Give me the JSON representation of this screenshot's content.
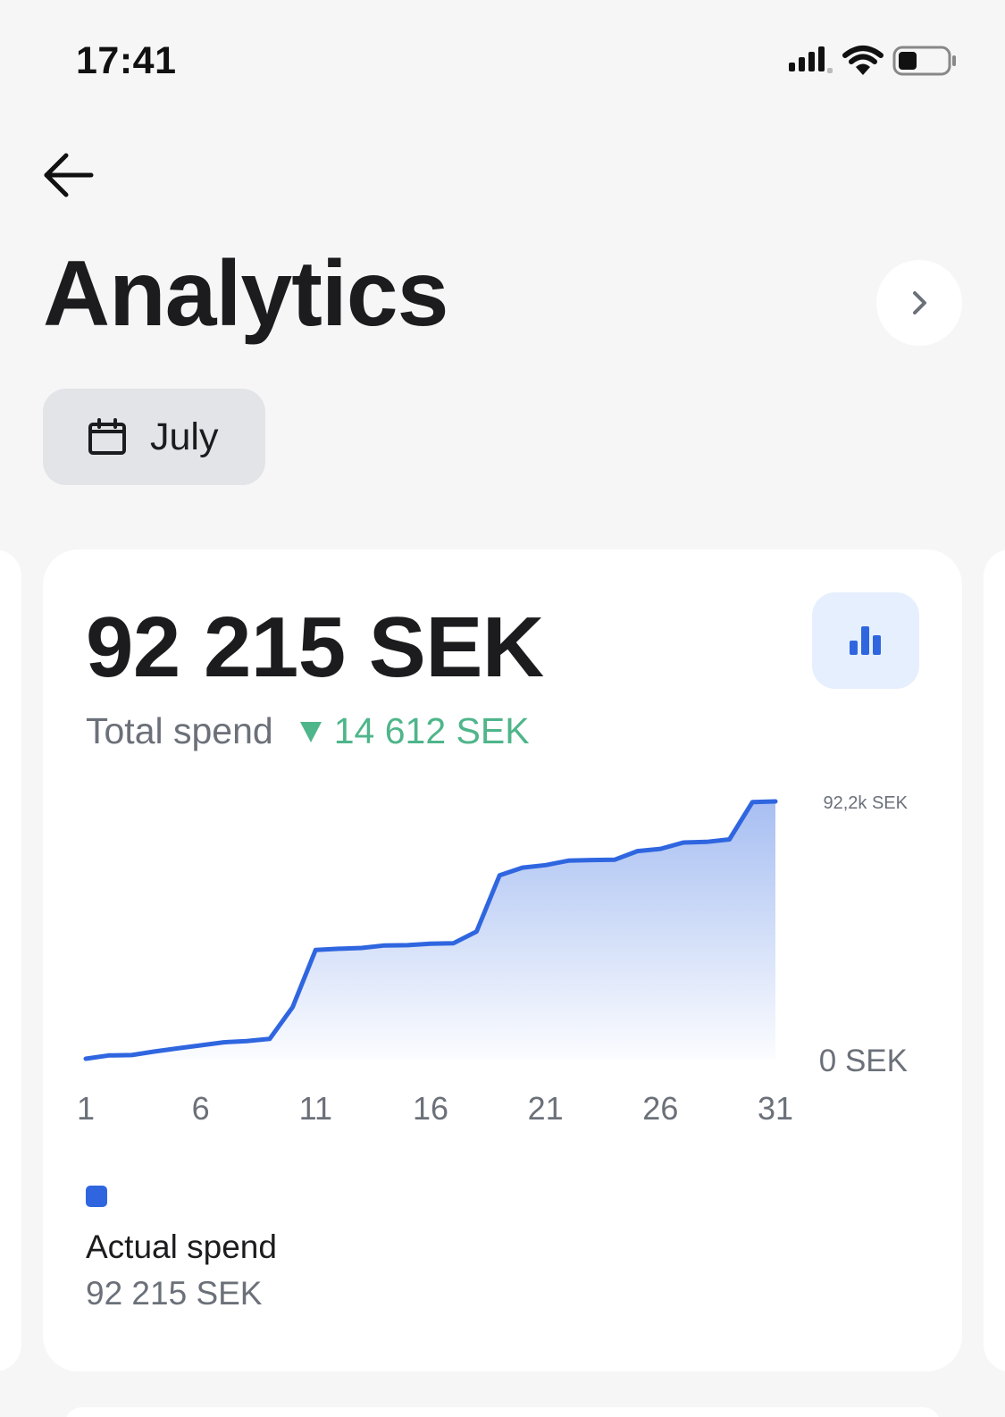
{
  "status_bar": {
    "time": "17:41",
    "icons": [
      "cellular-signal-icon",
      "wifi-icon",
      "battery-icon"
    ]
  },
  "header": {
    "back_icon": "arrow-left-icon",
    "title": "Analytics",
    "next_icon": "chevron-right-icon"
  },
  "filter": {
    "icon": "calendar-icon",
    "month": "July"
  },
  "summary": {
    "total": "92 215 SEK",
    "label": "Total spend",
    "delta_direction": "down",
    "delta": "14 612 SEK",
    "chart_icon": "bar-chart-icon"
  },
  "colors": {
    "accent": "#2f66e0",
    "positive": "#4fb58a",
    "muted": "#6b7079",
    "background": "#f6f6f6",
    "card": "#ffffff",
    "filter_bg": "#e2e4e8",
    "chart_button_bg": "#e6effd"
  },
  "legend": {
    "name": "Actual spend",
    "value": "92 215 SEK"
  },
  "chart_data": {
    "type": "area",
    "title": "",
    "xlabel": "",
    "ylabel": "",
    "x_ticks": [
      "1",
      "6",
      "11",
      "16",
      "21",
      "26",
      "31"
    ],
    "y_ticks": [
      {
        "value": 0,
        "label": "0 SEK"
      },
      {
        "value": 92215,
        "label": "92,2k SEK"
      }
    ],
    "ylim": [
      0,
      92215
    ],
    "xlim": [
      1,
      31
    ],
    "grid": false,
    "series": [
      {
        "name": "Actual spend",
        "x": [
          1,
          2,
          3,
          4,
          5,
          6,
          7,
          8,
          9,
          10,
          11,
          12,
          13,
          14,
          15,
          16,
          17,
          18,
          19,
          20,
          21,
          22,
          23,
          24,
          25,
          26,
          27,
          28,
          29,
          30,
          31
        ],
        "values": [
          0,
          1200,
          1300,
          2600,
          3700,
          4800,
          5900,
          6300,
          7100,
          18500,
          39000,
          39400,
          39700,
          40600,
          40700,
          41200,
          41400,
          45600,
          65700,
          68500,
          69400,
          71000,
          71200,
          71300,
          74400,
          75200,
          77500,
          77700,
          78600,
          92000,
          92215
        ]
      }
    ]
  }
}
